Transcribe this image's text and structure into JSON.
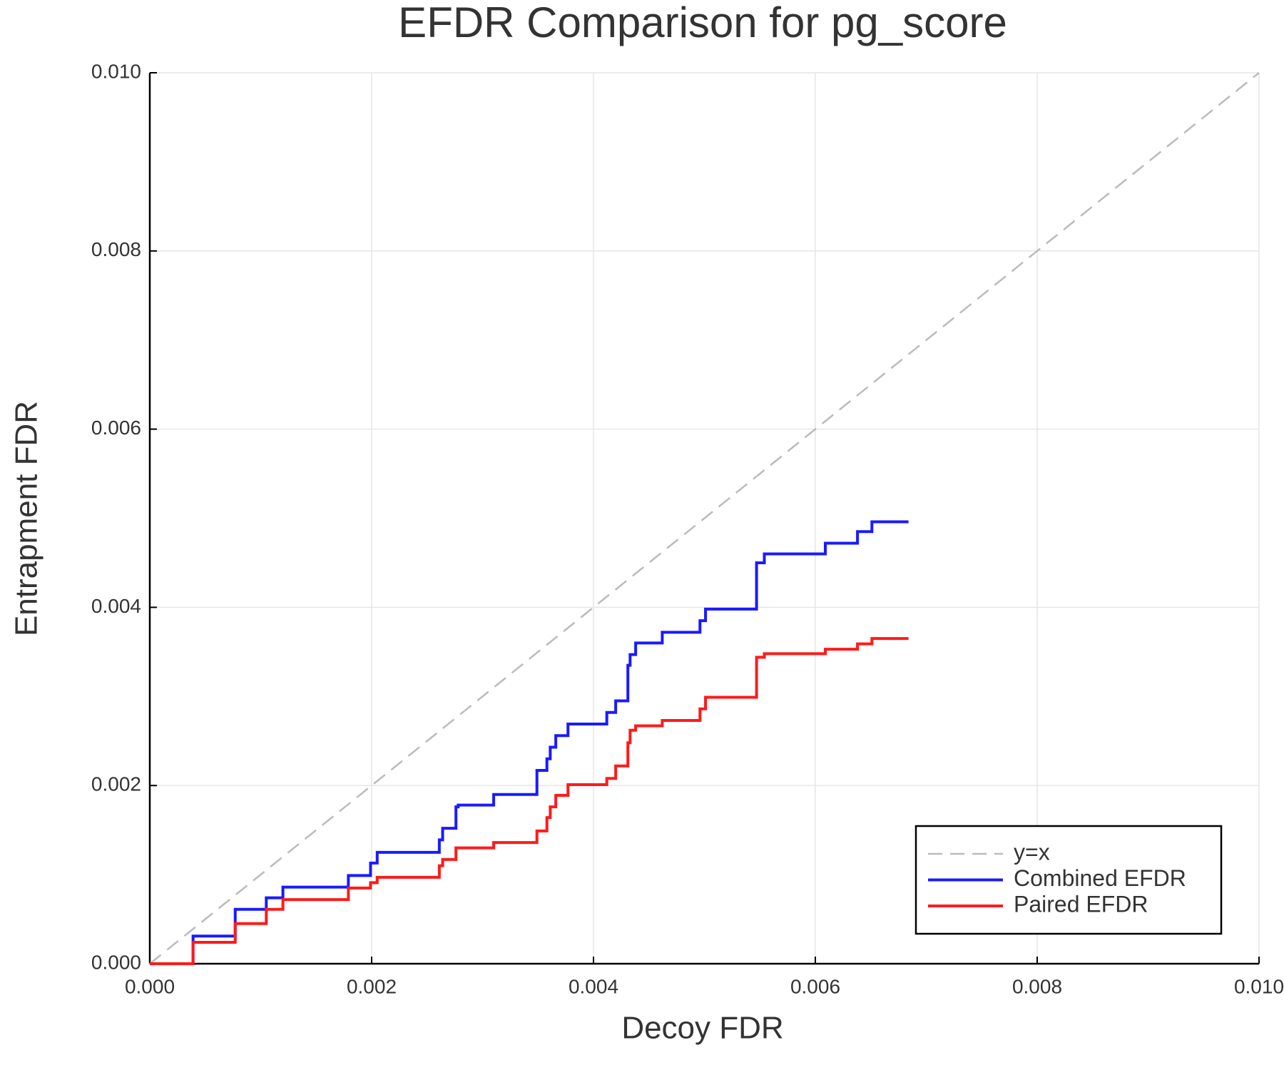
{
  "chart_data": {
    "type": "line",
    "title": "EFDR Comparison for pg_score",
    "x_label": "Decoy FDR",
    "y_label": "Entrapment FDR",
    "xlim": [
      0,
      0.01
    ],
    "ylim": [
      0,
      0.01
    ],
    "xticks": [
      {
        "value": 0,
        "label": "0.000"
      },
      {
        "value": 0.002,
        "label": "0.002"
      },
      {
        "value": 0.004,
        "label": "0.004"
      },
      {
        "value": 0.006,
        "label": "0.006"
      },
      {
        "value": 0.008,
        "label": "0.008"
      },
      {
        "value": 0.01,
        "label": "0.010"
      }
    ],
    "yticks": [
      {
        "value": 0,
        "label": "0.000"
      },
      {
        "value": 0.002,
        "label": "0.002"
      },
      {
        "value": 0.004,
        "label": "0.004"
      },
      {
        "value": 0.006,
        "label": "0.006"
      },
      {
        "value": 0.008,
        "label": "0.008"
      },
      {
        "value": 0.01,
        "label": "0.010"
      }
    ],
    "grid": true,
    "legend": "lower right",
    "series": [
      {
        "name": "y=x",
        "color": "#bbbbbb",
        "line_style": "dashed",
        "drawstyle": "default",
        "x": [
          0,
          0.01
        ],
        "y": [
          0,
          0.01
        ]
      },
      {
        "name": "Combined EFDR",
        "color": "#1a1aff",
        "line_style": "solid",
        "drawstyle": "steps-post",
        "x": [
          0,
          0.00039,
          0.00077,
          0.00105,
          0.0012,
          0.00179,
          0.00199,
          0.00205,
          0.00261,
          0.00264,
          0.00276,
          0.00278,
          0.0031,
          0.00349,
          0.00358,
          0.00361,
          0.00366,
          0.00377,
          0.00412,
          0.0042,
          0.00431,
          0.00433,
          0.00438,
          0.00462,
          0.00496,
          0.00501,
          0.00547,
          0.00554,
          0.00609,
          0.00638,
          0.00651,
          0.00684
        ],
        "y": [
          0,
          0.00031,
          0.00061,
          0.00074,
          0.00086,
          0.00099,
          0.00113,
          0.00125,
          0.00139,
          0.00152,
          0.00176,
          0.00178,
          0.0019,
          0.00217,
          0.0023,
          0.00243,
          0.00256,
          0.00269,
          0.00282,
          0.00295,
          0.00335,
          0.00347,
          0.0036,
          0.00372,
          0.00385,
          0.00398,
          0.0045,
          0.0046,
          0.00472,
          0.00485,
          0.00496,
          0.00496
        ]
      },
      {
        "name": "Paired EFDR",
        "color": "#ff1a1a",
        "line_style": "solid",
        "drawstyle": "steps-post",
        "x": [
          0,
          0.00039,
          0.00077,
          0.00105,
          0.0012,
          0.00179,
          0.00199,
          0.00205,
          0.00261,
          0.00264,
          0.00276,
          0.0031,
          0.00349,
          0.00358,
          0.00361,
          0.00366,
          0.00377,
          0.00412,
          0.0042,
          0.00431,
          0.00433,
          0.00438,
          0.00462,
          0.00496,
          0.00501,
          0.00547,
          0.00554,
          0.00609,
          0.00638,
          0.00651,
          0.00684
        ],
        "y": [
          0,
          0.00024,
          0.00045,
          0.00061,
          0.00072,
          0.00085,
          0.00091,
          0.00097,
          0.0011,
          0.00117,
          0.0013,
          0.00136,
          0.00149,
          0.00164,
          0.00176,
          0.00189,
          0.00201,
          0.00208,
          0.00222,
          0.00248,
          0.00262,
          0.00267,
          0.00273,
          0.00286,
          0.00299,
          0.00344,
          0.00348,
          0.00353,
          0.00359,
          0.00365,
          0.00365
        ]
      }
    ]
  }
}
